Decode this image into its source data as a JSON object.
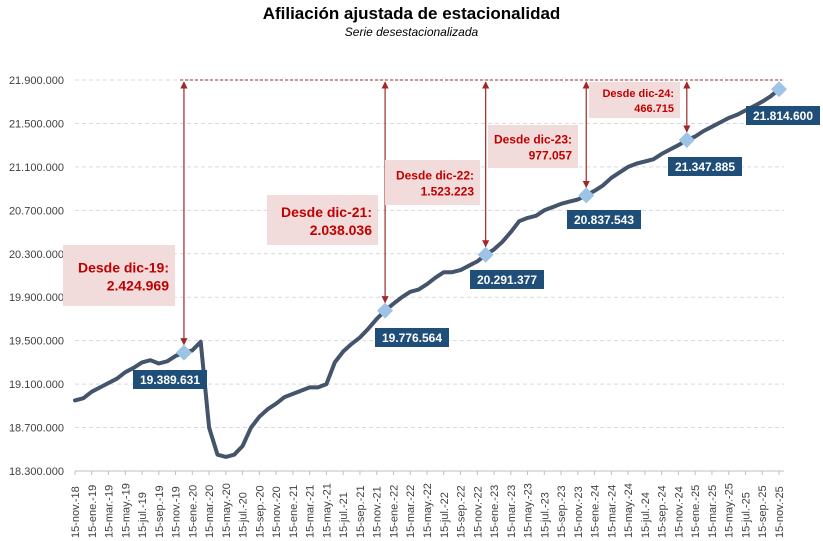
{
  "chart_data": {
    "type": "line",
    "title": "Afiliación ajustada de estacionalidad",
    "subtitle": "Serie desestacionalizada",
    "xlabel": "",
    "ylabel": "",
    "ylim": [
      18300000,
      21900000
    ],
    "yticks": [
      "18.300.000",
      "18.700.000",
      "19.100.000",
      "19.500.000",
      "19.900.000",
      "20.300.000",
      "20.700.000",
      "21.100.000",
      "21.500.000",
      "21.900.000"
    ],
    "ytick_values": [
      18300000,
      18700000,
      19100000,
      19500000,
      19900000,
      20300000,
      20700000,
      21100000,
      21500000,
      21900000
    ],
    "grid": "horizontal dashed",
    "x_start": "15-nov.-18",
    "x_end": "15-nov.-25",
    "xticks": [
      "15-nov.-18",
      "15-ene.-19",
      "15-mar.-19",
      "15-may.-19",
      "15-jul.-19",
      "15-sep.-19",
      "15-nov.-19",
      "15-ene.-20",
      "15-mar.-20",
      "15-may.-20",
      "15-jul.-20",
      "15-sep.-20",
      "15-nov.-20",
      "15-ene.-21",
      "15-mar.-21",
      "15-may.-21",
      "15-jul.-21",
      "15-sep.-21",
      "15-nov.-21",
      "15-ene.-22",
      "15-mar.-22",
      "15-may.-22",
      "15-jul.-22",
      "15-sep.-22",
      "15-nov.-22",
      "15-ene.-23",
      "15-mar.-23",
      "15-may.-23",
      "15-jul.-23",
      "15-sep.-23",
      "15-nov.-23",
      "15-ene.-24",
      "15-mar.-24",
      "15-may.-24",
      "15-jul.-24",
      "15-sep.-24",
      "15-nov.-24",
      "15-ene.-25",
      "15-mar.-25",
      "15-may.-25",
      "15-jul.-25",
      "15-sep.-25",
      "15-nov.-25"
    ],
    "values": [
      18950000,
      18970000,
      19030000,
      19070000,
      19110000,
      19150000,
      19210000,
      19250000,
      19300000,
      19320000,
      19290000,
      19310000,
      19360000,
      19389631,
      19410000,
      19490000,
      18700000,
      18450000,
      18430000,
      18450000,
      18530000,
      18700000,
      18800000,
      18870000,
      18920000,
      18980000,
      19010000,
      19040000,
      19070000,
      19070000,
      19100000,
      19300000,
      19400000,
      19470000,
      19530000,
      19610000,
      19700000,
      19776564,
      19840000,
      19900000,
      19950000,
      19970000,
      20020000,
      20080000,
      20130000,
      20130000,
      20150000,
      20190000,
      20230000,
      20291377,
      20340000,
      20410000,
      20500000,
      20600000,
      20630000,
      20650000,
      20700000,
      20730000,
      20760000,
      20780000,
      20800000,
      20837543,
      20880000,
      20930000,
      21000000,
      21050000,
      21100000,
      21130000,
      21150000,
      21170000,
      21220000,
      21260000,
      21300000,
      21347885,
      21380000,
      21430000,
      21470000,
      21510000,
      21550000,
      21580000,
      21620000,
      21660000,
      21700000,
      21750000,
      21814600
    ],
    "line_color": "#44546a",
    "marker_color": "#9dc3e6",
    "reference_line": 21900000,
    "markers": [
      {
        "month_index": 13,
        "label": "19.389.631",
        "anno_title": "Desde dic-19:",
        "anno_value": "2.424.969"
      },
      {
        "month_index": 37,
        "label": "19.776.564",
        "anno_title": "Desde dic-21:",
        "anno_value": "2.038.036"
      },
      {
        "month_index": 49,
        "label": "20.291.377",
        "anno_title": "Desde dic-22:",
        "anno_value": "1.523.223"
      },
      {
        "month_index": 61,
        "label": "20.837.543",
        "anno_title": "Desde dic-23:",
        "anno_value": "977.057"
      },
      {
        "month_index": 73,
        "label": "21.347.885",
        "anno_title": "Desde dic-24:",
        "anno_value": "466.715"
      },
      {
        "month_index": 84,
        "label": "21.814.600"
      }
    ],
    "colors": {
      "label_box": "#1f4e79",
      "anno_box": "#f2dcdb",
      "anno_text": "#c00000",
      "arrow": "#a0282a",
      "grid": "#d9d9d9"
    }
  }
}
